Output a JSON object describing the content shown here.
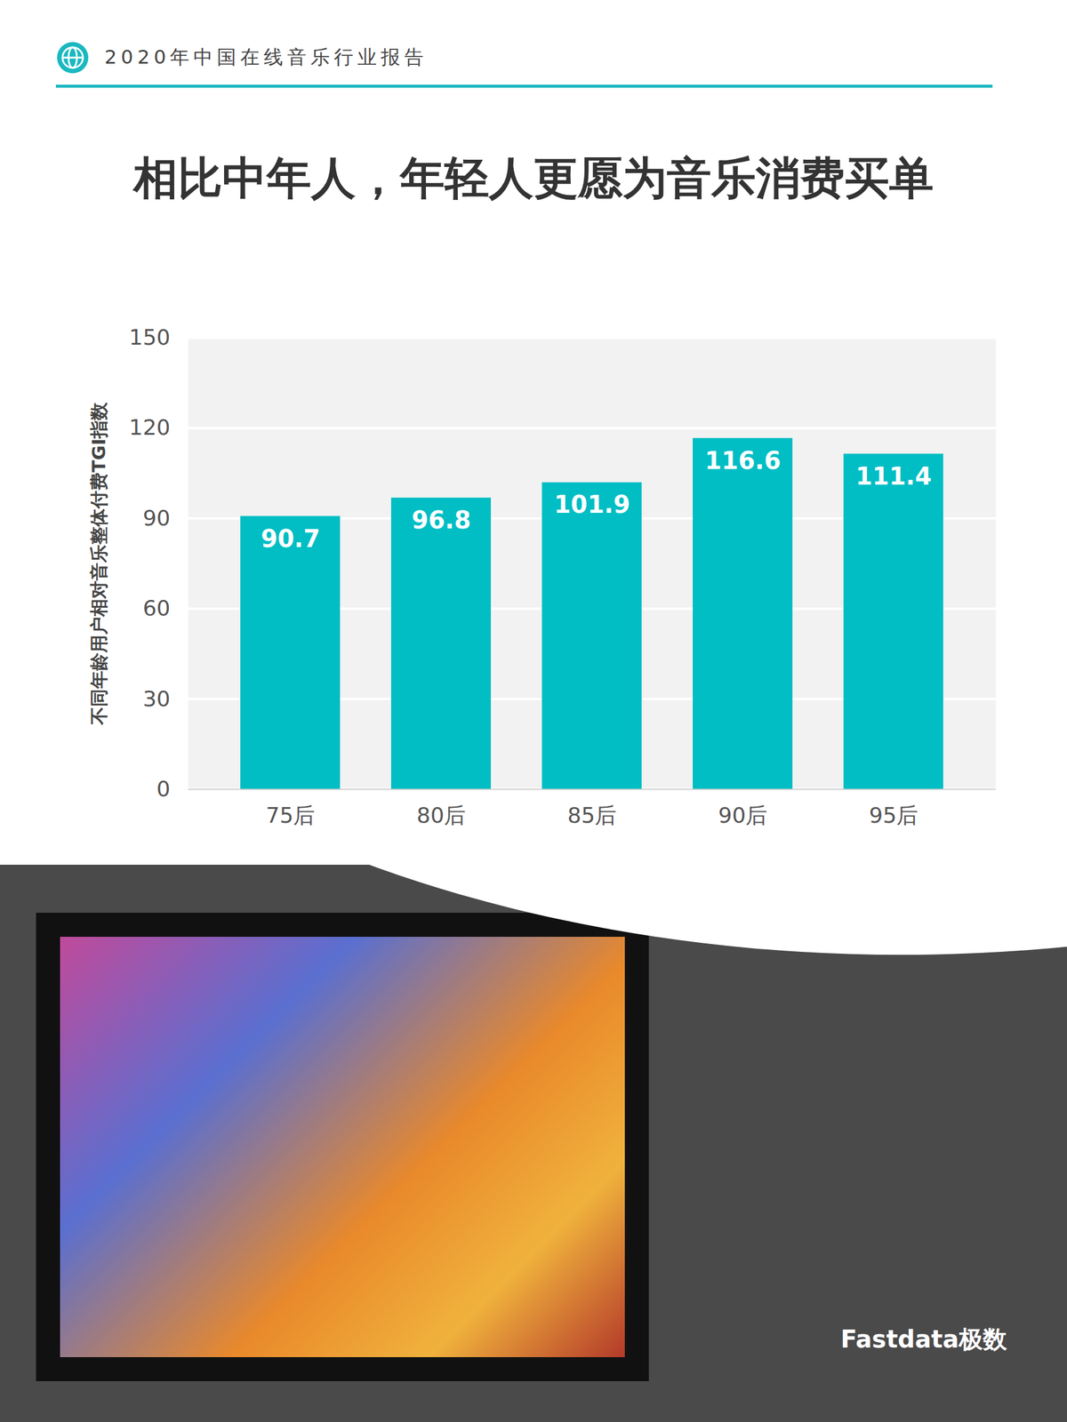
{
  "header": "2020年中国在线音乐行业报告",
  "brand": "Fastdata极数",
  "chart_data": {
    "type": "bar",
    "title": "相比中年人，年轻人更愿为音乐消费买单",
    "ylabel": "不同年龄用户相对音乐整体付费TGI指数",
    "categories": [
      "75后",
      "80后",
      "85后",
      "90后",
      "95后"
    ],
    "values": [
      90.7,
      96.8,
      101.9,
      116.6,
      111.4
    ],
    "color": "#00bec4",
    "ylim": [
      0,
      150
    ],
    "yticks": [
      0,
      30,
      60,
      90,
      120,
      150
    ],
    "grid": true,
    "data_labels": true
  }
}
